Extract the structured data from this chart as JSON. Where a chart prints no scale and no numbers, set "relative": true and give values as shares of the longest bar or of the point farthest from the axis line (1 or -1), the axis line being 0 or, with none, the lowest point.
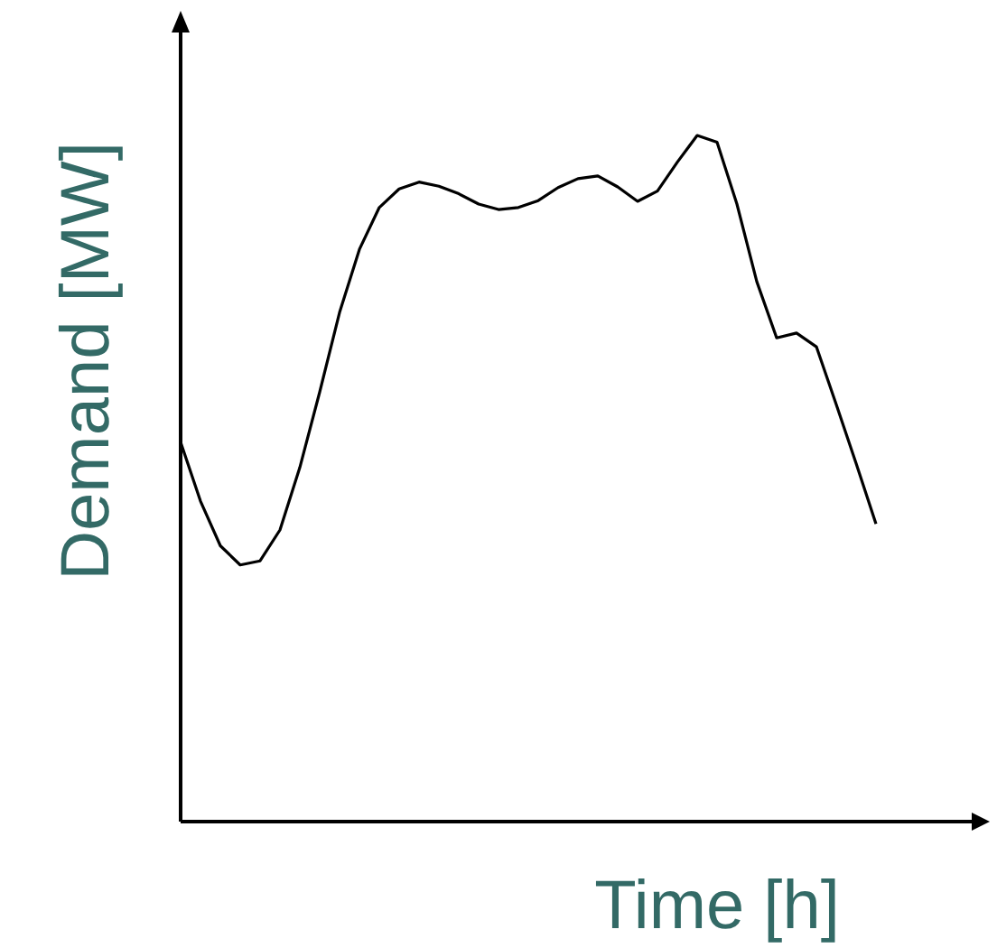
{
  "chart_data": {
    "type": "line",
    "relative": true,
    "xlabel": "Time [h]",
    "ylabel": "Demand [MW]",
    "categories": [
      null,
      null,
      null,
      null,
      null,
      null,
      null,
      null,
      null,
      null,
      null,
      null,
      null,
      null,
      null,
      null,
      null,
      null,
      null,
      null,
      null,
      null,
      null,
      null,
      null,
      null,
      null,
      null,
      null,
      null,
      null,
      null,
      null,
      null,
      null,
      null
    ],
    "series": [
      {
        "color": "#000000",
        "values": [
          0.553,
          0.467,
          0.402,
          0.374,
          0.38,
          0.425,
          0.516,
          0.626,
          0.742,
          0.834,
          0.895,
          0.922,
          0.932,
          0.926,
          0.915,
          0.9,
          0.892,
          0.895,
          0.905,
          0.924,
          0.937,
          0.941,
          0.925,
          0.904,
          0.919,
          0.961,
          1,
          0.99,
          0.9,
          0.787,
          0.705,
          0.712,
          0.692,
          0.608,
          0.522,
          0.434
        ]
      }
    ],
    "grid": false,
    "marker": "none",
    "line_style": "solid"
  }
}
